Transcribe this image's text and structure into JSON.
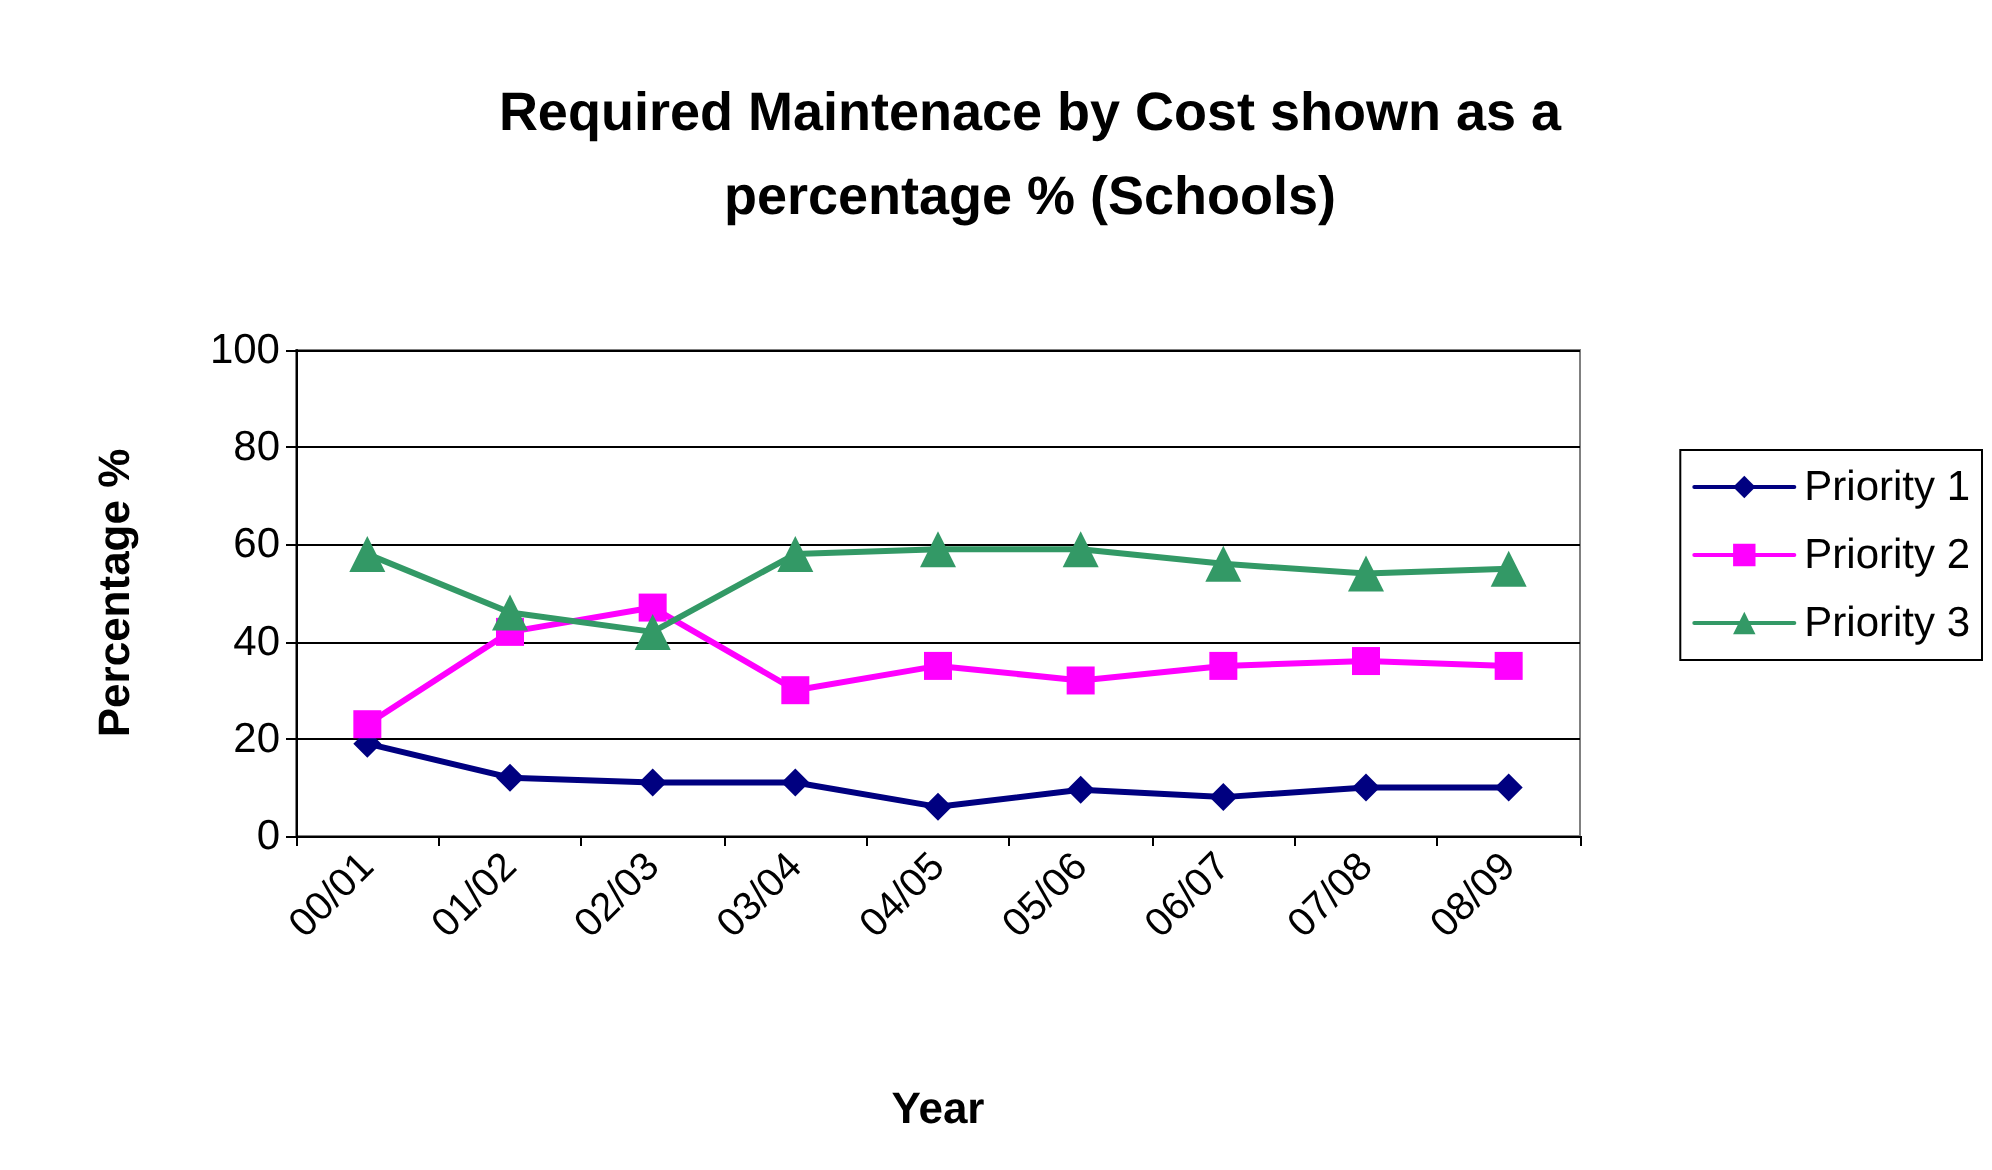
{
  "chart_data": {
    "type": "line",
    "title": "Required Maintenace by Cost shown as a\npercentage % (Schools)",
    "xlabel": "Year",
    "ylabel": "Percentage %",
    "categories": [
      "00/01",
      "01/02",
      "02/03",
      "03/04",
      "04/05",
      "05/06",
      "06/07",
      "07/08",
      "08/09"
    ],
    "series": [
      {
        "name": "Priority 1",
        "color": "#000080",
        "marker": "diamond",
        "values": [
          19,
          12,
          11,
          11,
          6,
          9.5,
          8,
          10,
          10
        ]
      },
      {
        "name": "Priority 2",
        "color": "#ff00ff",
        "marker": "square",
        "values": [
          23,
          42,
          47,
          30,
          35,
          32,
          35,
          36,
          35
        ]
      },
      {
        "name": "Priority 3",
        "color": "#339966",
        "marker": "triangle",
        "values": [
          58,
          46,
          42,
          58,
          59,
          59,
          56,
          54,
          55
        ]
      }
    ],
    "ylim": [
      0,
      100
    ],
    "yticks": [
      0,
      20,
      40,
      60,
      80,
      100
    ],
    "grid": "y",
    "legend": "right"
  }
}
